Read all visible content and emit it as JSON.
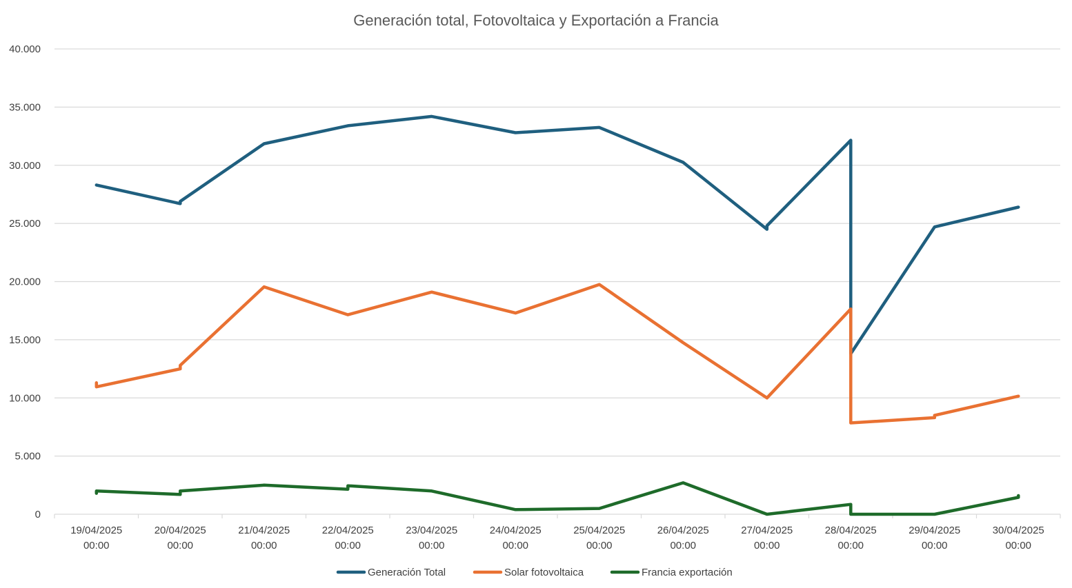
{
  "chart_data": {
    "type": "line",
    "title": "Generación total, Fotovoltaica y Exportación a Francia",
    "xlabel": "",
    "ylabel": "",
    "ylim": [
      0,
      40000
    ],
    "yticks": [
      0,
      5000,
      10000,
      15000,
      20000,
      25000,
      30000,
      35000,
      40000
    ],
    "ytick_labels": [
      "0",
      "5.000",
      "10.000",
      "15.000",
      "20.000",
      "25.000",
      "30.000",
      "35.000",
      "40.000"
    ],
    "categories": [
      [
        "19/04/2025",
        "00:00"
      ],
      [
        "20/04/2025",
        "00:00"
      ],
      [
        "21/04/2025",
        "00:00"
      ],
      [
        "22/04/2025",
        "00:00"
      ],
      [
        "23/04/2025",
        "00:00"
      ],
      [
        "24/04/2025",
        "00:00"
      ],
      [
        "25/04/2025",
        "00:00"
      ],
      [
        "26/04/2025",
        "00:00"
      ],
      [
        "27/04/2025",
        "00:00"
      ],
      [
        "28/04/2025",
        "00:00"
      ],
      [
        "29/04/2025",
        "00:00"
      ],
      [
        "30/04/2025",
        "00:00"
      ]
    ],
    "grid": true,
    "legend_position": "bottom",
    "series": [
      {
        "name": "Generación Total",
        "color": "#1f5f7f",
        "points": [
          {
            "x": 0,
            "y": 28300
          },
          {
            "x": 1,
            "y": 26700
          },
          {
            "x": 1,
            "y": 26900
          },
          {
            "x": 2,
            "y": 31850
          },
          {
            "x": 3,
            "y": 33400
          },
          {
            "x": 4,
            "y": 34200
          },
          {
            "x": 5,
            "y": 32800
          },
          {
            "x": 6,
            "y": 33250
          },
          {
            "x": 7,
            "y": 30250
          },
          {
            "x": 8,
            "y": 24500
          },
          {
            "x": 8,
            "y": 24800
          },
          {
            "x": 9,
            "y": 32150
          },
          {
            "x": 9,
            "y": 13800
          },
          {
            "x": 10,
            "y": 24700
          },
          {
            "x": 11,
            "y": 26400
          }
        ]
      },
      {
        "name": "Solar fotovoltaica",
        "color": "#e97132",
        "points": [
          {
            "x": 0,
            "y": 11300
          },
          {
            "x": 0,
            "y": 10950
          },
          {
            "x": 1,
            "y": 12500
          },
          {
            "x": 1,
            "y": 12800
          },
          {
            "x": 2,
            "y": 19550
          },
          {
            "x": 3,
            "y": 17150
          },
          {
            "x": 4,
            "y": 19100
          },
          {
            "x": 5,
            "y": 17300
          },
          {
            "x": 6,
            "y": 19750
          },
          {
            "x": 7,
            "y": 14750
          },
          {
            "x": 8,
            "y": 10000
          },
          {
            "x": 9,
            "y": 17650
          },
          {
            "x": 9,
            "y": 7850
          },
          {
            "x": 10,
            "y": 8300
          },
          {
            "x": 10,
            "y": 8500
          },
          {
            "x": 11,
            "y": 10150
          }
        ]
      },
      {
        "name": "Francia exportación",
        "color": "#1e6b2a",
        "points": [
          {
            "x": 0,
            "y": 1800
          },
          {
            "x": 0,
            "y": 2000
          },
          {
            "x": 1,
            "y": 1700
          },
          {
            "x": 1,
            "y": 2000
          },
          {
            "x": 2,
            "y": 2500
          },
          {
            "x": 3,
            "y": 2150
          },
          {
            "x": 3,
            "y": 2450
          },
          {
            "x": 4,
            "y": 2000
          },
          {
            "x": 5,
            "y": 400
          },
          {
            "x": 6,
            "y": 500
          },
          {
            "x": 7,
            "y": 2700
          },
          {
            "x": 8,
            "y": 0
          },
          {
            "x": 9,
            "y": 850
          },
          {
            "x": 9,
            "y": 0
          },
          {
            "x": 10,
            "y": 0
          },
          {
            "x": 11,
            "y": 1450
          },
          {
            "x": 11,
            "y": 1600
          }
        ]
      }
    ]
  }
}
